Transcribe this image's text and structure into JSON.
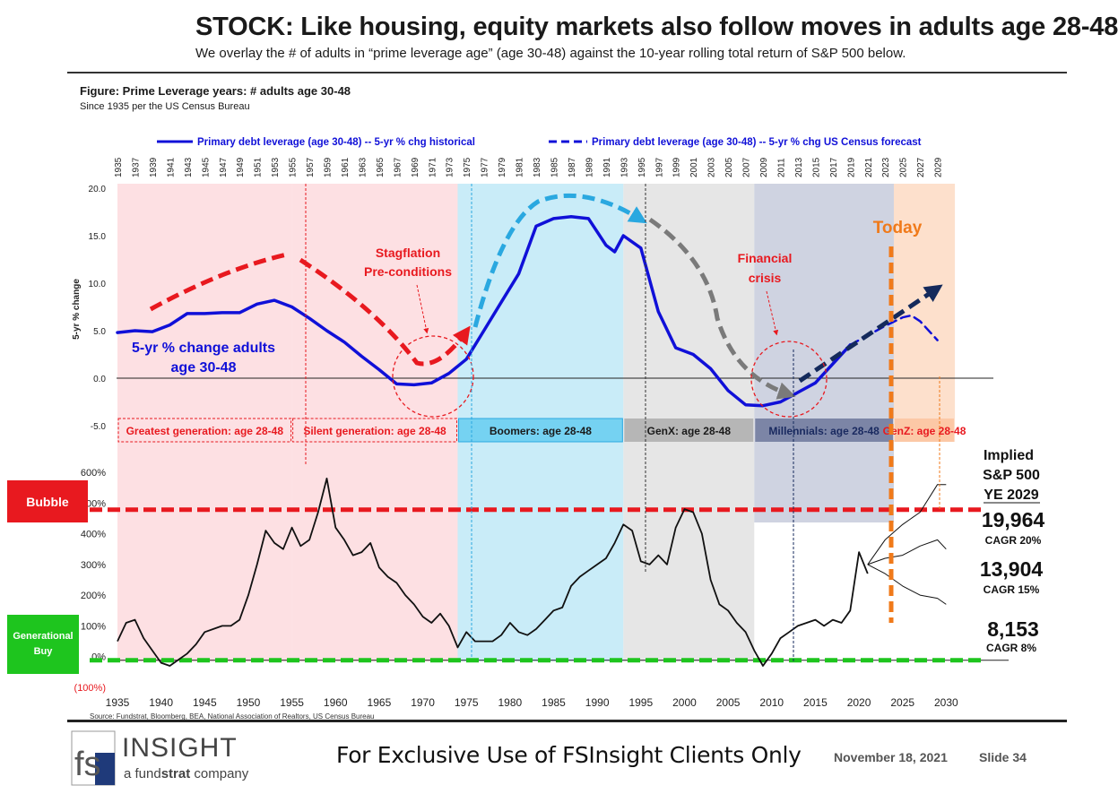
{
  "header": {
    "title": "STOCK: Like housing, equity markets also follow moves in adults age 28-48",
    "subtitle": "We overlay the # of adults in “prime leverage age” (age 30-48) against the 10-year rolling total return of S&P 500 below."
  },
  "figure": {
    "label": "Figure: Prime Leverage years:  # adults age 30-48",
    "sublabel": "Since 1935 per the US Census Bureau"
  },
  "legend": {
    "historical": "Primary debt leverage (age 30-48) -- 5-yr % chg historical",
    "forecast": "Primary debt leverage (age 30-48) -- 5-yr % chg US Census forecast"
  },
  "chart_data": [
    {
      "type": "line",
      "ylabel": "5-yr % change",
      "ylim": [
        -5,
        20
      ],
      "yticks": [
        "20.0",
        "15.0",
        "10.0",
        "5.0",
        "0.0",
        "-5.0"
      ],
      "xticks": [
        "1935",
        "1937",
        "1939",
        "1941",
        "1943",
        "1945",
        "1947",
        "1949",
        "1951",
        "1953",
        "1955",
        "1957",
        "1959",
        "1961",
        "1963",
        "1965",
        "1967",
        "1969",
        "1971",
        "1973",
        "1975",
        "1977",
        "1979",
        "1981",
        "1983",
        "1985",
        "1987",
        "1989",
        "1991",
        "1993",
        "1995",
        "1997",
        "1999",
        "2001",
        "2003",
        "2005",
        "2007",
        "2009",
        "2011",
        "2013",
        "2015",
        "2017",
        "2019",
        "2021",
        "2023",
        "2025",
        "2027",
        "2029"
      ],
      "series": [
        {
          "name": "Primary debt leverage (age 30-48) -- 5-yr % chg historical",
          "color": "#1010d8",
          "x": [
            1935,
            1937,
            1939,
            1941,
            1943,
            1945,
            1947,
            1949,
            1951,
            1953,
            1955,
            1957,
            1959,
            1961,
            1963,
            1965,
            1967,
            1969,
            1971,
            1973,
            1975,
            1977,
            1979,
            1981,
            1983,
            1985,
            1987,
            1989,
            1991,
            1992,
            1993,
            1995,
            1997,
            1999,
            2001,
            2003,
            2005,
            2007,
            2009,
            2011,
            2013,
            2015,
            2017,
            2019
          ],
          "y": [
            4.8,
            5.0,
            4.9,
            5.6,
            6.8,
            6.8,
            6.9,
            6.9,
            7.8,
            8.2,
            7.5,
            6.3,
            5.0,
            3.8,
            2.3,
            0.9,
            -0.6,
            -0.7,
            -0.5,
            0.5,
            2.0,
            5.0,
            8.0,
            11.0,
            16.0,
            16.8,
            17.0,
            16.8,
            14.0,
            13.3,
            15.0,
            13.7,
            7.0,
            3.2,
            2.5,
            1.0,
            -1.3,
            -2.8,
            -2.9,
            -2.5,
            -1.5,
            -0.5,
            1.5,
            3.5
          ]
        },
        {
          "name": "Primary debt leverage (age 30-48) -- 5-yr % chg US Census forecast",
          "color": "#1010d8",
          "dashed": true,
          "x": [
            2019,
            2021,
            2023,
            2025,
            2026,
            2027,
            2029
          ],
          "y": [
            3.5,
            4.5,
            5.5,
            6.4,
            6.6,
            6.0,
            4.0
          ]
        }
      ],
      "generations": [
        {
          "name": "Greatest generation: age 28-48",
          "from": 1935,
          "to": 1955,
          "fill": "#fde0e3",
          "box": "#fde0e3",
          "text": "#e8191f"
        },
        {
          "name": "Silent generation: age 28-48",
          "from": 1955,
          "to": 1974,
          "fill": "#fde0e3",
          "box": "#fde0e3",
          "text": "#e8191f"
        },
        {
          "name": "Boomers: age 28-48",
          "from": 1974,
          "to": 1993,
          "fill": "#c9ecf8",
          "box": "#75d2f2",
          "text": "#1a1a1a"
        },
        {
          "name": "GenX: age 28-48",
          "from": 1993,
          "to": 2008,
          "fill": "#e6e6e6",
          "box": "#b6b6b6",
          "text": "#1a1a1a"
        },
        {
          "name": "Millennials: age 28-48",
          "from": 2008,
          "to": 2024,
          "fill": "#cfd3e1",
          "box": "#7c85a6",
          "text": "#1a2a60"
        },
        {
          "name": "GenZ: age 28-48",
          "from": 2024,
          "to": 2031,
          "fill": "#fde0cc",
          "box": "#fcc8a6",
          "text": "#e8191f"
        }
      ],
      "annotations": {
        "series_label": [
          "5-yr % change adults",
          "age 30-48"
        ],
        "stagflation": [
          "Stagflation",
          "Pre-conditions"
        ],
        "financial_crisis": [
          "Financial",
          "crisis"
        ],
        "today": "Today"
      }
    },
    {
      "type": "line",
      "ylim": [
        -100,
        600
      ],
      "yticks": [
        "600%",
        "500%",
        "400%",
        "300%",
        "200%",
        "100%",
        "0%",
        "(100%)"
      ],
      "xticks": [
        "1935",
        "1940",
        "1945",
        "1950",
        "1955",
        "1960",
        "1965",
        "1970",
        "1975",
        "1980",
        "1985",
        "1990",
        "1995",
        "2000",
        "2005",
        "2010",
        "2015",
        "2020",
        "2025",
        "2030"
      ],
      "series": [
        {
          "name": "S&P 500 10-year rolling total return",
          "color": "#111111",
          "x": [
            1935,
            1936,
            1937,
            1938,
            1939,
            1940,
            1941,
            1942,
            1943,
            1944,
            1945,
            1946,
            1947,
            1948,
            1949,
            1950,
            1951,
            1952,
            1953,
            1954,
            1955,
            1956,
            1957,
            1958,
            1959,
            1960,
            1961,
            1962,
            1963,
            1964,
            1965,
            1966,
            1967,
            1968,
            1969,
            1970,
            1971,
            1972,
            1973,
            1974,
            1975,
            1976,
            1977,
            1978,
            1979,
            1980,
            1981,
            1982,
            1983,
            1984,
            1985,
            1986,
            1987,
            1988,
            1989,
            1990,
            1991,
            1992,
            1993,
            1994,
            1995,
            1996,
            1997,
            1998,
            1999,
            2000,
            2001,
            2002,
            2003,
            2004,
            2005,
            2006,
            2007,
            2008,
            2009,
            2010,
            2011,
            2012,
            2013,
            2014,
            2015,
            2016,
            2017,
            2018,
            2019,
            2020,
            2021
          ],
          "y": [
            50,
            110,
            120,
            60,
            20,
            -20,
            -30,
            -10,
            10,
            40,
            80,
            90,
            100,
            100,
            120,
            200,
            300,
            410,
            370,
            350,
            420,
            360,
            380,
            470,
            580,
            420,
            380,
            330,
            340,
            370,
            290,
            260,
            240,
            200,
            170,
            130,
            110,
            140,
            100,
            30,
            80,
            50,
            50,
            50,
            70,
            110,
            80,
            70,
            90,
            120,
            150,
            160,
            230,
            260,
            280,
            300,
            320,
            370,
            430,
            410,
            310,
            300,
            330,
            300,
            420,
            480,
            470,
            400,
            250,
            170,
            150,
            110,
            80,
            20,
            -30,
            10,
            60,
            80,
            100,
            110,
            120,
            100,
            120,
            110,
            150,
            340,
            270
          ]
        },
        {
          "name": "Implied path CAGR 20%",
          "color": "#111111",
          "x": [
            2021,
            2023,
            2025,
            2027,
            2029,
            2030
          ],
          "y": [
            300,
            380,
            430,
            470,
            560,
            560
          ]
        },
        {
          "name": "Implied path CAGR 15%",
          "color": "#111111",
          "x": [
            2021,
            2023,
            2025,
            2027,
            2029,
            2030
          ],
          "y": [
            300,
            320,
            330,
            360,
            380,
            350
          ]
        },
        {
          "name": "Implied path CAGR 8%",
          "color": "#111111",
          "x": [
            2021,
            2023,
            2025,
            2027,
            2029,
            2030
          ],
          "y": [
            300,
            270,
            230,
            200,
            190,
            170
          ]
        }
      ],
      "reference_lines": [
        {
          "name": "Bubble",
          "y": 490,
          "color": "#e8191f"
        },
        {
          "name": "Generational Buy",
          "y": 0,
          "color": "#1ec51e"
        }
      ],
      "implied": {
        "title": [
          "Implied",
          "S&P 500",
          "YE 2029"
        ],
        "levels": [
          {
            "value": "19,964",
            "cagr": "CAGR 20%"
          },
          {
            "value": "13,904",
            "cagr": "CAGR 15%"
          },
          {
            "value": "8,153",
            "cagr": "CAGR 8%"
          }
        ]
      }
    }
  ],
  "badges": {
    "bubble": "Bubble",
    "generational_buy": "Generational Buy"
  },
  "footer": {
    "source": "Source: Fundstrat, Bloomberg, BEA, National Association of Realtors, US Census Bureau",
    "logo_text_fs": "fs",
    "logo_insight": "INSIGHT",
    "logo_tagline_a": "a fund",
    "logo_tagline_b": "strat",
    "logo_tagline_c": " company",
    "exclusive": "For Exclusive Use of FSInsight Clients Only",
    "date": "November 18, 2021",
    "slide": "Slide  34"
  }
}
